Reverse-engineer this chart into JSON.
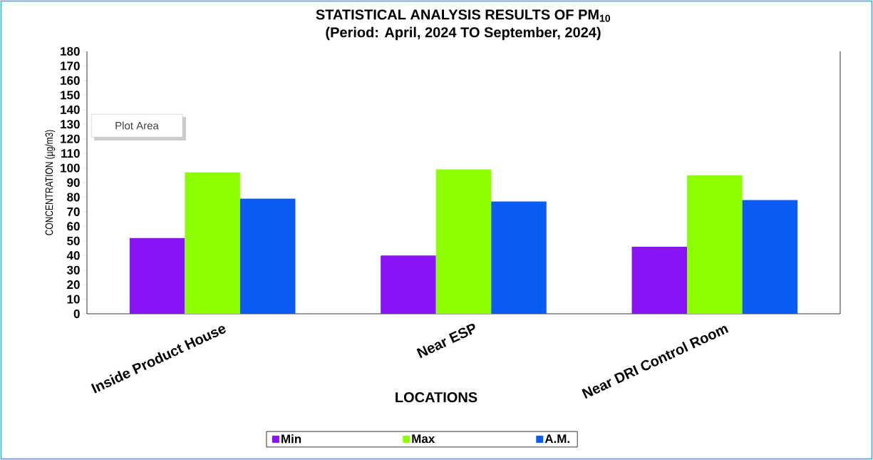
{
  "chart_data": {
    "type": "bar",
    "title": "STATISTICAL ANALYSIS RESULTS OF PM$_{10}$",
    "subtitle": "(Period: April, 2024 TO September, 2024)",
    "xlabel": "LOCATIONS",
    "ylabel": "CONCENTRATION (µg/m3)",
    "categories": [
      "Inside Product House",
      "Near ESP",
      "Near DRI Control Room"
    ],
    "series": [
      {
        "name": "Min",
        "color": "#8a12f7",
        "values": [
          52,
          40,
          46
        ]
      },
      {
        "name": "Max",
        "color": "#8cff00",
        "values": [
          97,
          99,
          95
        ]
      },
      {
        "name": "A.M.",
        "color": "#0a5cf5",
        "values": [
          79,
          77,
          78
        ]
      }
    ],
    "ylim": [
      0,
      180
    ],
    "yticks": [
      0,
      10,
      20,
      30,
      40,
      50,
      60,
      70,
      80,
      90,
      100,
      110,
      120,
      130,
      140,
      150,
      160,
      170,
      180
    ],
    "grid": false,
    "legend": "bottom",
    "annotations": [
      "Plot Area"
    ]
  }
}
